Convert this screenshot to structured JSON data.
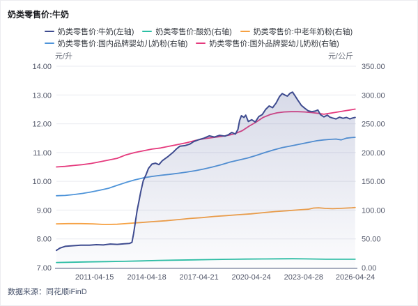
{
  "footer": {
    "source": "数据来源：同花顺iFinD"
  },
  "colors": {
    "milk": "#3e4b8f",
    "yogurt": "#2bbfa4",
    "elderly_powder": "#f6a143",
    "domestic_formula": "#4e94d9",
    "foreign_formula": "#e53a7d",
    "grid": "#eaebf0",
    "axis_line": "#a6acbe",
    "tick_text": "#53586a",
    "area_fill": "#5a66a0"
  },
  "chart_data": {
    "type": "line",
    "title": "奶类零售价:牛奶",
    "grid": "horizontal",
    "legend_position": "top",
    "x_range": [
      2009.1,
      2026.35
    ],
    "left_axis": {
      "unit": "元/升",
      "range": [
        7,
        14
      ],
      "tick_step": 1,
      "tick_format": 2
    },
    "right_axis": {
      "unit": "元/公斤",
      "range": [
        0,
        350
      ],
      "tick_step": 50,
      "tick_format": 2
    },
    "x_ticks": [
      {
        "label": "2011-04-15",
        "t": 2011.29
      },
      {
        "label": "2014-04-18",
        "t": 2014.3
      },
      {
        "label": "2017-04-21",
        "t": 2017.31
      },
      {
        "label": "2020-04-24",
        "t": 2020.32
      },
      {
        "label": "2023-04-28",
        "t": 2023.33
      },
      {
        "label": "2026-04-24",
        "t": 2026.31
      }
    ],
    "legend_rows": [
      [
        0,
        1,
        2
      ],
      [
        3,
        4
      ]
    ],
    "series": [
      {
        "name": "奶类零售价:牛奶(左轴)",
        "axis": "left",
        "color": "#3e4b8f",
        "area": true,
        "z": 1,
        "width": 2,
        "points": [
          [
            2009.1,
            7.6
          ],
          [
            2009.3,
            7.68
          ],
          [
            2009.6,
            7.74
          ],
          [
            2010.0,
            7.76
          ],
          [
            2010.5,
            7.78
          ],
          [
            2011.0,
            7.78
          ],
          [
            2011.4,
            7.8
          ],
          [
            2011.8,
            7.79
          ],
          [
            2012.2,
            7.82
          ],
          [
            2012.6,
            7.81
          ],
          [
            2013.0,
            7.83
          ],
          [
            2013.3,
            7.84
          ],
          [
            2013.45,
            7.88
          ],
          [
            2013.55,
            8.2
          ],
          [
            2013.65,
            8.6
          ],
          [
            2013.75,
            9.0
          ],
          [
            2013.85,
            9.3
          ],
          [
            2013.95,
            9.62
          ],
          [
            2014.1,
            10.02
          ],
          [
            2014.25,
            10.22
          ],
          [
            2014.4,
            10.45
          ],
          [
            2014.6,
            10.6
          ],
          [
            2014.8,
            10.63
          ],
          [
            2015.0,
            10.58
          ],
          [
            2015.2,
            10.72
          ],
          [
            2015.5,
            10.85
          ],
          [
            2015.8,
            11.0
          ],
          [
            2016.0,
            11.12
          ],
          [
            2016.2,
            11.22
          ],
          [
            2016.5,
            11.24
          ],
          [
            2016.8,
            11.3
          ],
          [
            2017.0,
            11.38
          ],
          [
            2017.3,
            11.45
          ],
          [
            2017.6,
            11.5
          ],
          [
            2017.9,
            11.58
          ],
          [
            2018.2,
            11.54
          ],
          [
            2018.5,
            11.6
          ],
          [
            2018.8,
            11.57
          ],
          [
            2019.0,
            11.62
          ],
          [
            2019.2,
            11.7
          ],
          [
            2019.4,
            11.64
          ],
          [
            2019.55,
            11.8
          ],
          [
            2019.65,
            12.12
          ],
          [
            2019.75,
            12.28
          ],
          [
            2019.9,
            12.22
          ],
          [
            2020.0,
            12.3
          ],
          [
            2020.15,
            12.08
          ],
          [
            2020.35,
            12.14
          ],
          [
            2020.55,
            12.06
          ],
          [
            2020.75,
            12.25
          ],
          [
            2020.95,
            12.32
          ],
          [
            2021.15,
            12.5
          ],
          [
            2021.35,
            12.62
          ],
          [
            2021.55,
            12.56
          ],
          [
            2021.75,
            12.72
          ],
          [
            2021.95,
            12.95
          ],
          [
            2022.1,
            13.05
          ],
          [
            2022.25,
            13.0
          ],
          [
            2022.4,
            12.96
          ],
          [
            2022.55,
            13.06
          ],
          [
            2022.7,
            13.1
          ],
          [
            2022.85,
            12.96
          ],
          [
            2023.0,
            12.82
          ],
          [
            2023.2,
            12.64
          ],
          [
            2023.4,
            12.54
          ],
          [
            2023.6,
            12.45
          ],
          [
            2023.8,
            12.42
          ],
          [
            2024.0,
            12.44
          ],
          [
            2024.15,
            12.48
          ],
          [
            2024.3,
            12.32
          ],
          [
            2024.5,
            12.24
          ],
          [
            2024.7,
            12.3
          ],
          [
            2024.85,
            12.23
          ],
          [
            2025.0,
            12.2
          ],
          [
            2025.2,
            12.17
          ],
          [
            2025.4,
            12.23
          ],
          [
            2025.6,
            12.19
          ],
          [
            2025.8,
            12.22
          ],
          [
            2026.0,
            12.17
          ],
          [
            2026.15,
            12.2
          ],
          [
            2026.3,
            12.22
          ]
        ]
      },
      {
        "name": "奶类零售价:酸奶(右轴)",
        "axis": "right",
        "color": "#2bbfa4",
        "area": false,
        "z": 0,
        "width": 1.8,
        "points": [
          [
            2009.1,
            9.0
          ],
          [
            2010.0,
            9.5
          ],
          [
            2011.0,
            10.0
          ],
          [
            2012.0,
            10.5
          ],
          [
            2013.0,
            11.0
          ],
          [
            2014.0,
            11.8
          ],
          [
            2015.0,
            12.6
          ],
          [
            2016.0,
            13.1
          ],
          [
            2017.0,
            13.6
          ],
          [
            2018.0,
            14.1
          ],
          [
            2019.0,
            14.5
          ],
          [
            2020.0,
            14.9
          ],
          [
            2021.0,
            15.1
          ],
          [
            2022.0,
            15.4
          ],
          [
            2022.7,
            15.5
          ],
          [
            2023.4,
            15.2
          ],
          [
            2024.0,
            15.0
          ],
          [
            2024.6,
            14.7
          ],
          [
            2025.2,
            14.6
          ],
          [
            2026.3,
            14.7
          ]
        ]
      },
      {
        "name": "奶类零售价:中老年奶粉(右轴)",
        "axis": "right",
        "color": "#f6a143",
        "area": false,
        "z": 0,
        "width": 1.8,
        "points": [
          [
            2009.1,
            76.0
          ],
          [
            2009.8,
            76.5
          ],
          [
            2010.5,
            76.5
          ],
          [
            2011.2,
            76.0
          ],
          [
            2011.9,
            75.0
          ],
          [
            2012.6,
            75.5
          ],
          [
            2013.3,
            77.0
          ],
          [
            2014.0,
            78.5
          ],
          [
            2014.7,
            80.0
          ],
          [
            2015.4,
            81.5
          ],
          [
            2016.1,
            83.5
          ],
          [
            2016.8,
            85.5
          ],
          [
            2017.5,
            87.0
          ],
          [
            2018.2,
            89.0
          ],
          [
            2018.9,
            90.5
          ],
          [
            2019.6,
            92.0
          ],
          [
            2020.3,
            93.5
          ],
          [
            2021.0,
            95.5
          ],
          [
            2021.7,
            97.5
          ],
          [
            2022.4,
            99.0
          ],
          [
            2023.1,
            100.5
          ],
          [
            2023.6,
            101.5
          ],
          [
            2023.9,
            103.5
          ],
          [
            2024.2,
            104.0
          ],
          [
            2024.6,
            103.0
          ],
          [
            2025.0,
            102.5
          ],
          [
            2025.4,
            103.0
          ],
          [
            2025.8,
            103.5
          ],
          [
            2026.1,
            104.0
          ],
          [
            2026.3,
            104.5
          ]
        ]
      },
      {
        "name": "奶类零售价:国内品牌婴幼儿奶粉(右轴)",
        "axis": "right",
        "color": "#4e94d9",
        "area": false,
        "z": 0,
        "width": 1.8,
        "points": [
          [
            2009.1,
            125.0
          ],
          [
            2009.6,
            125.5
          ],
          [
            2010.1,
            127.0
          ],
          [
            2010.6,
            129.0
          ],
          [
            2011.1,
            131.5
          ],
          [
            2011.6,
            134.5
          ],
          [
            2012.1,
            138.0
          ],
          [
            2012.6,
            143.0
          ],
          [
            2013.1,
            148.0
          ],
          [
            2013.6,
            152.5
          ],
          [
            2014.1,
            156.0
          ],
          [
            2014.6,
            158.5
          ],
          [
            2015.1,
            160.5
          ],
          [
            2015.6,
            162.0
          ],
          [
            2016.1,
            164.0
          ],
          [
            2016.6,
            166.0
          ],
          [
            2017.1,
            168.5
          ],
          [
            2017.6,
            171.5
          ],
          [
            2018.1,
            175.0
          ],
          [
            2018.6,
            179.0
          ],
          [
            2019.1,
            183.5
          ],
          [
            2019.6,
            187.0
          ],
          [
            2020.1,
            190.5
          ],
          [
            2020.6,
            195.0
          ],
          [
            2021.1,
            200.0
          ],
          [
            2021.6,
            204.5
          ],
          [
            2022.1,
            208.5
          ],
          [
            2022.6,
            211.5
          ],
          [
            2023.1,
            214.5
          ],
          [
            2023.6,
            217.5
          ],
          [
            2024.1,
            220.5
          ],
          [
            2024.5,
            222.0
          ],
          [
            2024.9,
            223.0
          ],
          [
            2025.2,
            223.5
          ],
          [
            2025.5,
            222.0
          ],
          [
            2025.8,
            225.0
          ],
          [
            2026.1,
            226.0
          ],
          [
            2026.3,
            226.5
          ]
        ]
      },
      {
        "name": "奶类零售价:国外品牌婴幼儿奶粉(右轴)",
        "axis": "right",
        "color": "#e53a7d",
        "area": false,
        "z": 0,
        "width": 1.8,
        "points": [
          [
            2009.1,
            175.0
          ],
          [
            2009.6,
            176.0
          ],
          [
            2010.1,
            177.5
          ],
          [
            2010.6,
            179.0
          ],
          [
            2011.1,
            181.0
          ],
          [
            2011.6,
            184.0
          ],
          [
            2012.1,
            187.0
          ],
          [
            2012.6,
            190.0
          ],
          [
            2013.1,
            196.0
          ],
          [
            2013.6,
            200.0
          ],
          [
            2014.1,
            203.0
          ],
          [
            2014.6,
            206.0
          ],
          [
            2015.1,
            208.0
          ],
          [
            2015.6,
            211.0
          ],
          [
            2016.1,
            214.0
          ],
          [
            2016.6,
            217.0
          ],
          [
            2017.1,
            221.0
          ],
          [
            2017.6,
            224.0
          ],
          [
            2018.1,
            226.0
          ],
          [
            2018.6,
            228.0
          ],
          [
            2019.0,
            230.0
          ],
          [
            2019.4,
            233.0
          ],
          [
            2019.8,
            238.0
          ],
          [
            2020.2,
            246.0
          ],
          [
            2020.6,
            253.0
          ],
          [
            2021.0,
            261.0
          ],
          [
            2021.4,
            266.0
          ],
          [
            2021.8,
            269.0
          ],
          [
            2022.2,
            270.5
          ],
          [
            2022.6,
            271.0
          ],
          [
            2023.0,
            271.0
          ],
          [
            2023.4,
            270.5
          ],
          [
            2023.8,
            269.5
          ],
          [
            2024.2,
            268.0
          ],
          [
            2024.5,
            266.5
          ],
          [
            2024.8,
            268.0
          ],
          [
            2025.1,
            269.5
          ],
          [
            2025.4,
            271.0
          ],
          [
            2025.7,
            272.5
          ],
          [
            2026.0,
            274.0
          ],
          [
            2026.3,
            275.5
          ]
        ]
      }
    ]
  }
}
